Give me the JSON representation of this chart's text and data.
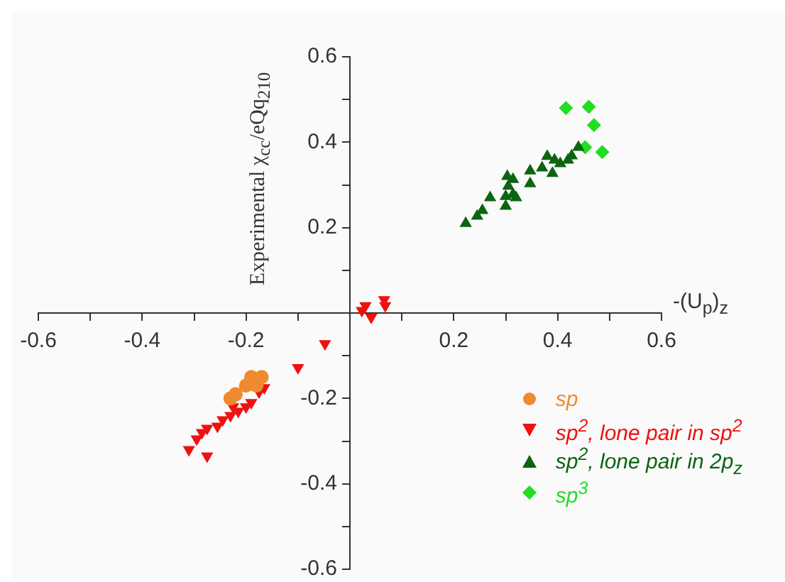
{
  "chart_data": {
    "type": "scatter",
    "xlabel": "-(U$_{p}$)$_{z}$",
    "ylabel": "Experimental χ$_{cc}$/eQq$_{210}$",
    "xlim": [
      -0.6,
      0.6
    ],
    "ylim": [
      -0.6,
      0.6
    ],
    "xticks": [
      -0.6,
      {
        "value": -0.5,
        "label": null
      },
      -0.4,
      {
        "value": -0.3,
        "label": null
      },
      -0.2,
      {
        "value": -0.1,
        "label": null
      },
      {
        "value": 0.1,
        "label": null
      },
      0.2,
      {
        "value": 0.3,
        "label": null
      },
      0.4,
      {
        "value": 0.5,
        "label": null
      },
      0.6
    ],
    "yticks": [
      -0.6,
      {
        "value": -0.5,
        "label": null
      },
      -0.4,
      {
        "value": -0.3,
        "label": null
      },
      -0.2,
      {
        "value": -0.1,
        "label": null
      },
      {
        "value": 0.1,
        "label": null
      },
      0.2,
      {
        "value": 0.3,
        "label": null
      },
      0.4,
      {
        "value": 0.5,
        "label": null
      },
      0.6
    ],
    "grid": false,
    "legend": "bottom right",
    "series": [
      {
        "name": "sp",
        "color": "#f08a30",
        "marker": "circle",
        "x": [
          -0.19,
          -0.17,
          -0.18,
          -0.2,
          -0.22,
          -0.23
        ],
        "values": [
          -0.15,
          -0.15,
          -0.17,
          -0.17,
          -0.19,
          -0.2
        ]
      },
      {
        "name": "sp$^{2}$, lone pair in sp$^{2}$",
        "color": "#ee1111",
        "marker": "triangle-down",
        "x": [
          -0.165,
          -0.19,
          -0.2,
          -0.215,
          -0.23,
          -0.245,
          -0.255,
          -0.275,
          -0.285,
          -0.295,
          -0.31,
          -0.275,
          -0.175,
          -0.225,
          0.03,
          0.023,
          0.041,
          0.066,
          0.068,
          -0.048,
          -0.1
        ],
        "values": [
          -0.175,
          -0.21,
          -0.22,
          -0.23,
          -0.24,
          -0.25,
          -0.265,
          -0.27,
          -0.28,
          -0.295,
          -0.32,
          -0.335,
          -0.185,
          -0.22,
          0.017,
          0.006,
          -0.01,
          0.031,
          0.017,
          -0.072,
          -0.128
        ]
      },
      {
        "name": "sp$^{2}$, lone pair in 2p$_{z}$",
        "color": "#0b6412",
        "marker": "triangle",
        "x": [
          0.223,
          0.245,
          0.255,
          0.27,
          0.3,
          0.3,
          0.305,
          0.303,
          0.314,
          0.314,
          0.32,
          0.347,
          0.347,
          0.37,
          0.38,
          0.39,
          0.394,
          0.405,
          0.42,
          0.427,
          0.44
        ],
        "values": [
          0.21,
          0.227,
          0.24,
          0.27,
          0.25,
          0.273,
          0.297,
          0.32,
          0.313,
          0.278,
          0.27,
          0.303,
          0.333,
          0.34,
          0.367,
          0.327,
          0.358,
          0.35,
          0.358,
          0.368,
          0.388
        ]
      },
      {
        "name": "sp$^{3}$",
        "color": "#22dd22",
        "marker": "diamond",
        "x": [
          0.416,
          0.46,
          0.47,
          0.453,
          0.486
        ],
        "values": [
          0.48,
          0.483,
          0.44,
          0.388,
          0.377
        ]
      }
    ]
  }
}
